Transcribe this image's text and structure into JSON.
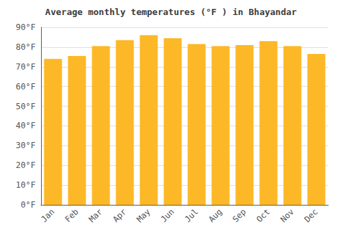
{
  "chart_data": {
    "type": "bar",
    "title": "Average monthly temperatures (°F ) in Bhayandar",
    "categories": [
      "Jan",
      "Feb",
      "Mar",
      "Apr",
      "May",
      "Jun",
      "Jul",
      "Aug",
      "Sep",
      "Oct",
      "Nov",
      "Dec"
    ],
    "values": [
      74.0,
      75.5,
      80.5,
      83.5,
      86.0,
      84.5,
      81.5,
      80.5,
      81.0,
      83.0,
      80.5,
      76.5
    ],
    "color": "#FDB827",
    "ylim": [
      0,
      90
    ],
    "yticks": [
      {
        "value": 0,
        "label": "0°F"
      },
      {
        "value": 10,
        "label": "10°F"
      },
      {
        "value": 20,
        "label": "20°F"
      },
      {
        "value": 30,
        "label": "30°F"
      },
      {
        "value": 40,
        "label": "40°F"
      },
      {
        "value": 50,
        "label": "50°F"
      },
      {
        "value": 60,
        "label": "60°F"
      },
      {
        "value": 70,
        "label": "70°F"
      },
      {
        "value": 80,
        "label": "80°F"
      },
      {
        "value": 90,
        "label": "90°F"
      }
    ],
    "grid": true
  }
}
